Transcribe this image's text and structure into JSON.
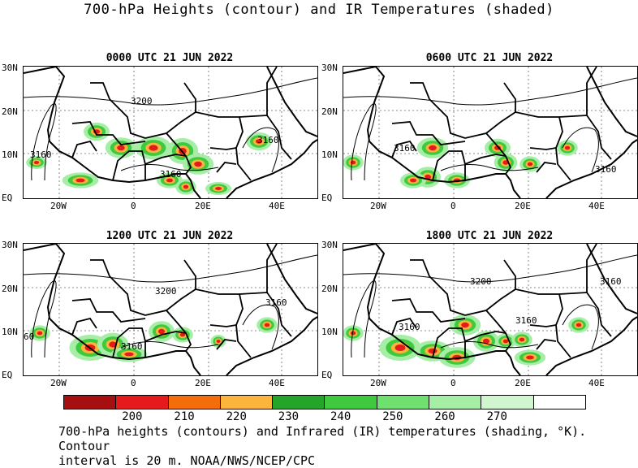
{
  "title": "700-hPa Heights (contour) and IR Temperatures (shaded)",
  "panels": [
    {
      "title": "0000 UTC 21 JUN 2022",
      "contour_labels": [
        "3200",
        "3160",
        "3160",
        "3160"
      ]
    },
    {
      "title": "0600 UTC 21 JUN 2022",
      "contour_labels": [
        "3160",
        "3160"
      ]
    },
    {
      "title": "1200 UTC 21 JUN 2022",
      "contour_labels": [
        "3200",
        "3160",
        "3160",
        "60"
      ]
    },
    {
      "title": "1800 UTC 21 JUN 2022",
      "contour_labels": [
        "3200",
        "3160",
        "3160",
        "3160"
      ]
    }
  ],
  "lat_labels": [
    "30N",
    "20N",
    "10N",
    "EQ"
  ],
  "lon_labels": [
    "20W",
    "0",
    "20E",
    "40E"
  ],
  "colorbar": {
    "colors": [
      "#a50f0f",
      "#e41a1c",
      "#f46d0a",
      "#fcb43c",
      "#23a52a",
      "#3fc93f",
      "#6fe06f",
      "#a6eea6",
      "#cff6cf",
      "#ffffff"
    ],
    "ticks": [
      "200",
      "210",
      "220",
      "230",
      "240",
      "250",
      "260",
      "270"
    ]
  },
  "caption_line1": "700-hPa heights (contours) and Infrared (IR) temperatures (shading, °K). Contour",
  "caption_line2": "interval is 20 m. NOAA/NWS/NCEP/CPC"
}
